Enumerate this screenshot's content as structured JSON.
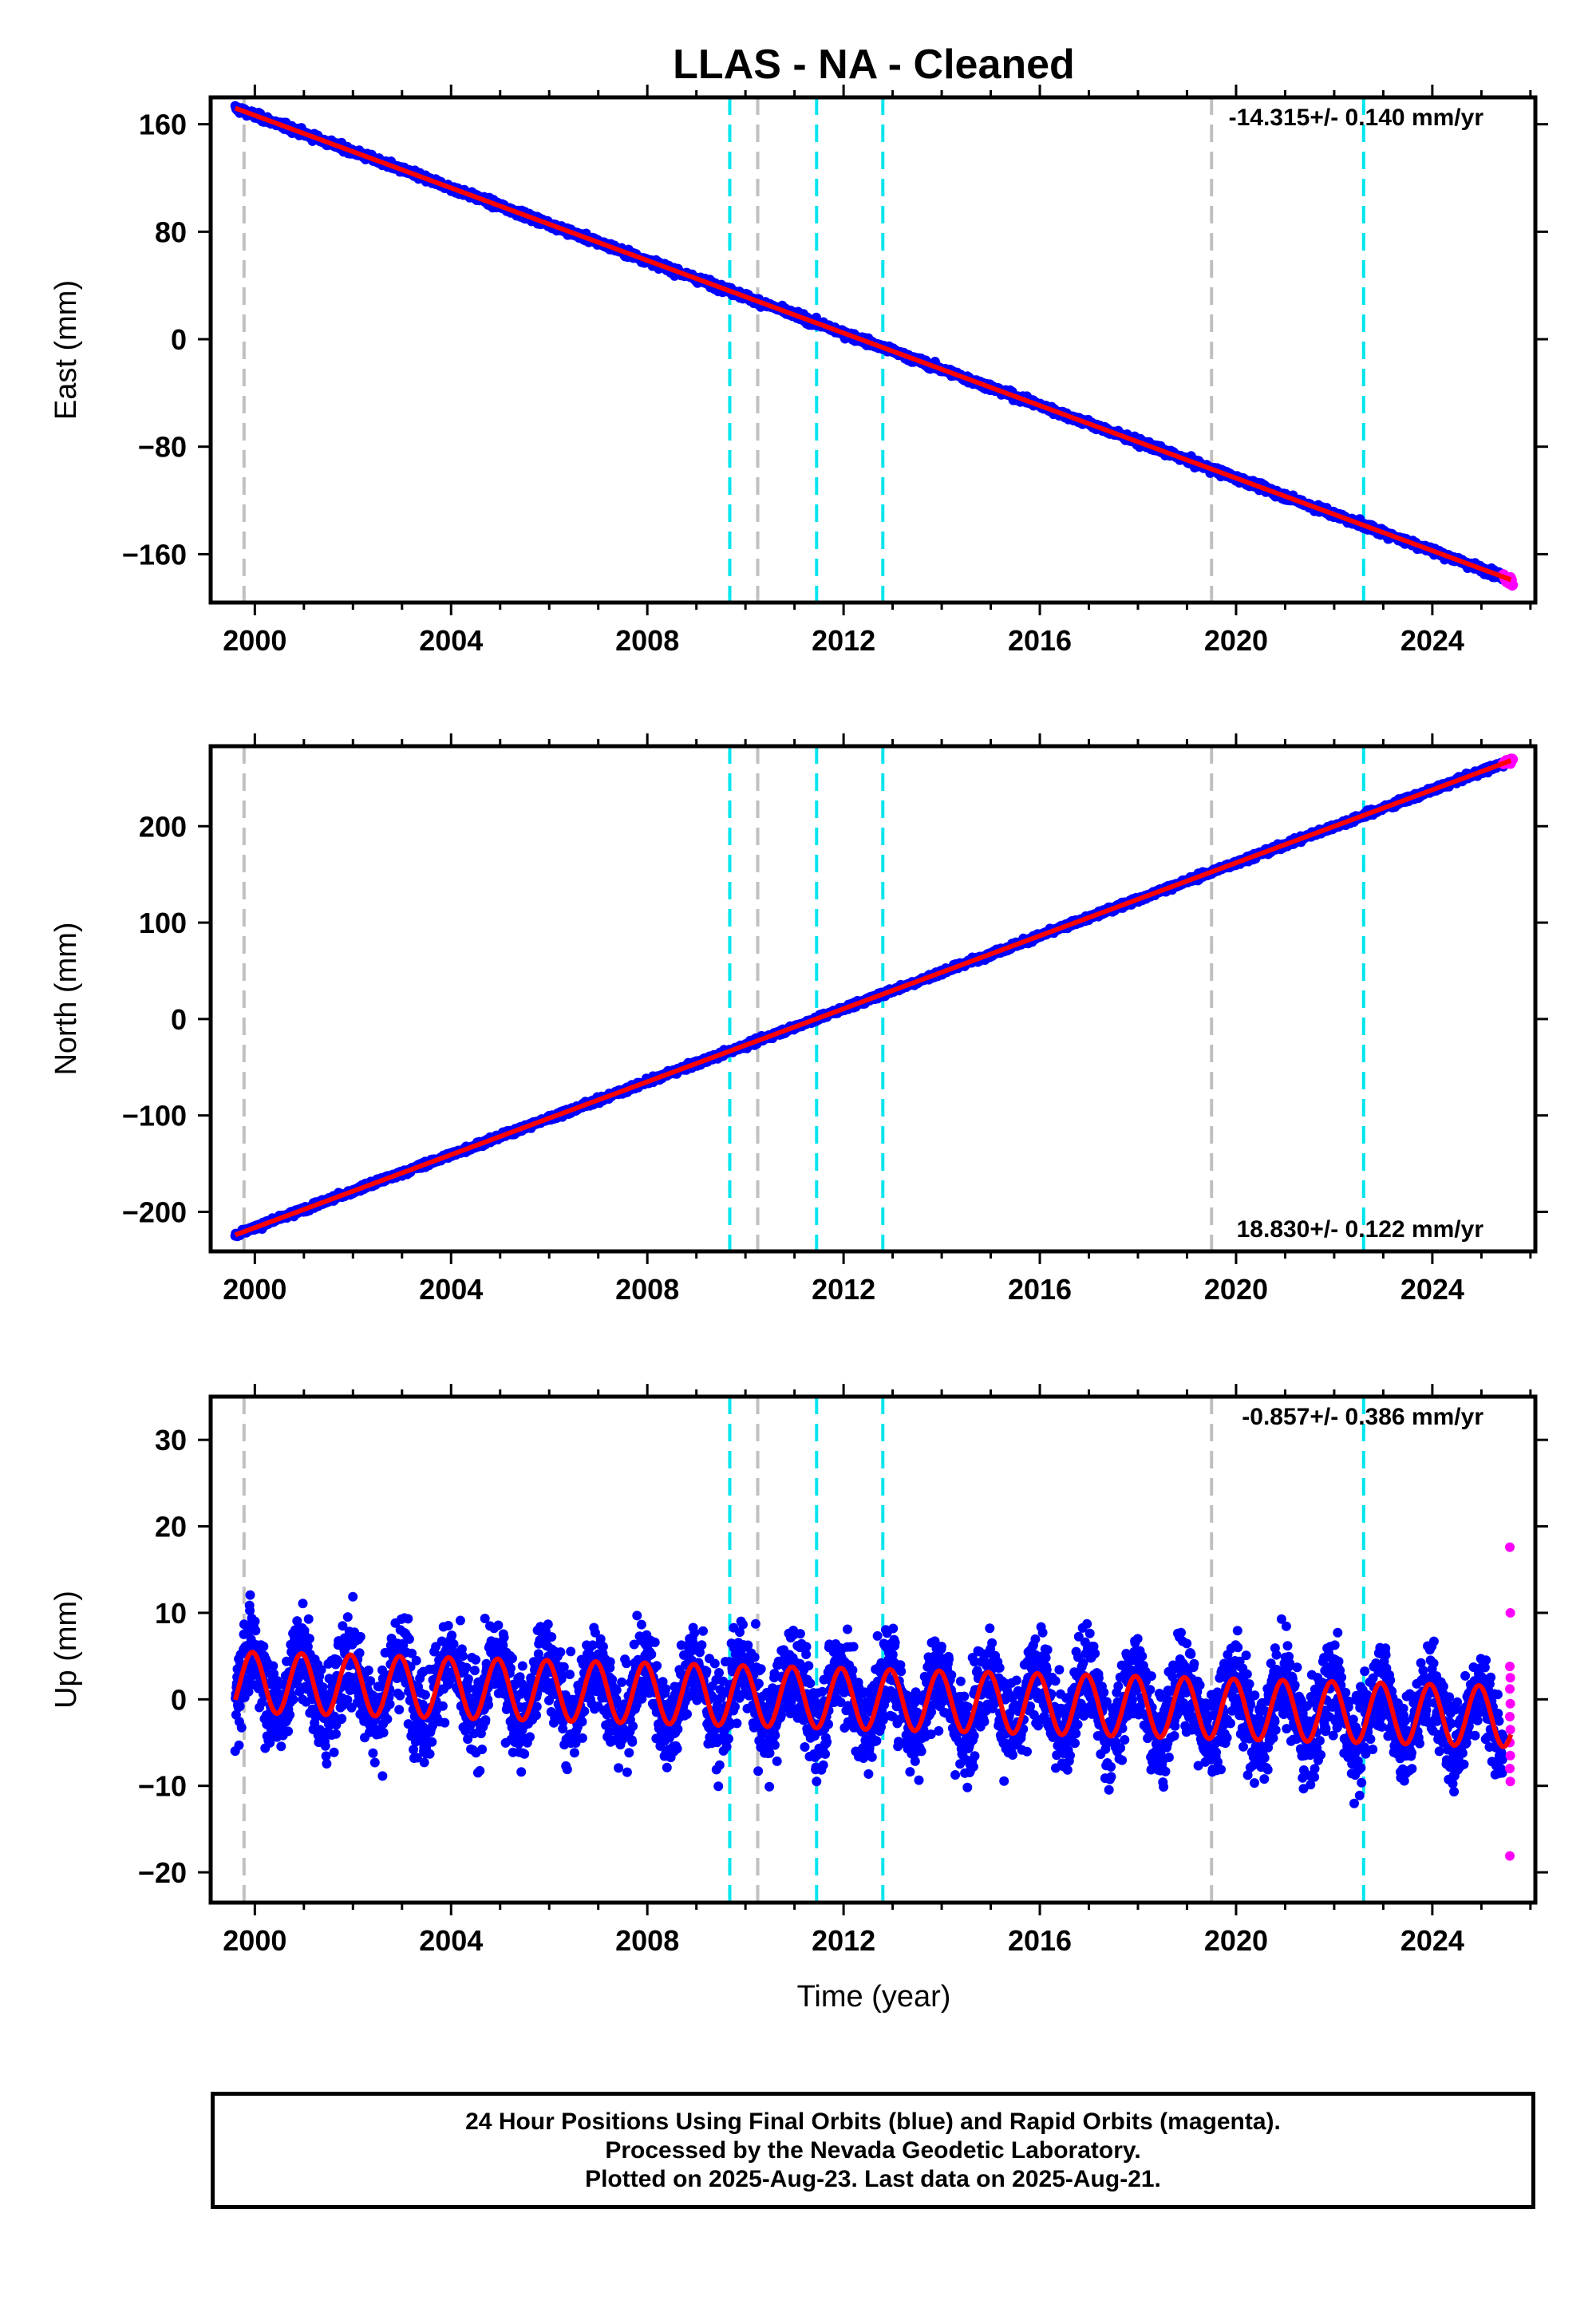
{
  "title": "LLAS  - NA - Cleaned",
  "xlabel": "Time (year)",
  "x_ticks": [
    "2000",
    "2004",
    "2008",
    "2012",
    "2016",
    "2020",
    "2024"
  ],
  "colors": {
    "final_orbits": "#0000ff",
    "rapid_orbits": "#ff00ff",
    "model": "#ff0000",
    "equipment_change": "#00e5ee",
    "other_event": "#c0c0c0"
  },
  "event_lines": {
    "gray": [
      1999.78,
      2010.25,
      2019.5
    ],
    "cyan": [
      2009.68,
      2011.45,
      2012.8,
      2022.6
    ]
  },
  "caption": [
    "24 Hour Positions Using Final Orbits (blue) and Rapid Orbits (magenta).",
    "Processed by the Nevada Geodetic Laboratory.",
    "Plotted on 2025-Aug-23. Last data on 2025-Aug-21."
  ],
  "chart_data": [
    {
      "type": "scatter",
      "panel": "east",
      "ylabel": "East (mm)",
      "rate_label": "-14.315+/- 0.140 mm/yr",
      "rate_position": "top-right",
      "y_ticks": [
        "160",
        "80",
        "0",
        "−80",
        "−160"
      ],
      "y_tick_values": [
        160,
        80,
        0,
        -80,
        -160
      ],
      "xlim": [
        1999.1,
        2026.1
      ],
      "ylim": [
        -196,
        180
      ],
      "model": {
        "x": [
          1999.6,
          2025.6
        ],
        "y": [
          172,
          -179
        ]
      },
      "series": [
        {
          "name": "Final Orbits",
          "x_range": [
            1999.6,
            2025.45
          ],
          "noise_mm": 2.2
        },
        {
          "name": "Rapid Orbits",
          "x_range": [
            2025.45,
            2025.64
          ],
          "noise_mm": 3
        }
      ]
    },
    {
      "type": "scatter",
      "panel": "north",
      "ylabel": "North (mm)",
      "rate_label": "18.830+/- 0.122 mm/yr",
      "rate_position": "bottom-right",
      "y_ticks": [
        "200",
        "100",
        "0",
        "−100",
        "−200"
      ],
      "y_tick_values": [
        200,
        100,
        0,
        -100,
        -200
      ],
      "xlim": [
        1999.1,
        2026.1
      ],
      "ylim": [
        -241,
        283
      ],
      "model": {
        "x": [
          1999.6,
          2025.6
        ],
        "y": [
          -224,
          268
        ]
      },
      "series": [
        {
          "name": "Final Orbits",
          "x_range": [
            1999.6,
            2025.45
          ],
          "noise_mm": 2.5
        },
        {
          "name": "Rapid Orbits",
          "x_range": [
            2025.45,
            2025.64
          ],
          "noise_mm": 3
        }
      ]
    },
    {
      "type": "scatter",
      "panel": "up",
      "ylabel": "Up (mm)",
      "rate_label": "-0.857+/- 0.386 mm/yr",
      "rate_position": "top-right",
      "y_ticks": [
        "30",
        "20",
        "10",
        "0",
        "−10",
        "−20"
      ],
      "y_tick_values": [
        30,
        20,
        10,
        0,
        -10,
        -20
      ],
      "xlim": [
        1999.1,
        2026.1
      ],
      "ylim": [
        -23.5,
        35
      ],
      "model": {
        "x": [
          1999.6,
          2025.6
        ],
        "y": [
          2,
          -2
        ],
        "seasonal_amplitude_mm": 3.5
      },
      "series": [
        {
          "name": "Final Orbits",
          "x_range": [
            1999.6,
            2025.45
          ],
          "noise_mm": 4.5
        },
        {
          "name": "Rapid Orbits",
          "x_range": [
            2025.45,
            2025.64
          ],
          "values": [
            17.6,
            10.0,
            3.8,
            2.5,
            1.2,
            -0.5,
            -2.0,
            -3.5,
            -5.0,
            -6.5,
            -8.0,
            -9.5,
            -18.1
          ]
        }
      ]
    }
  ]
}
